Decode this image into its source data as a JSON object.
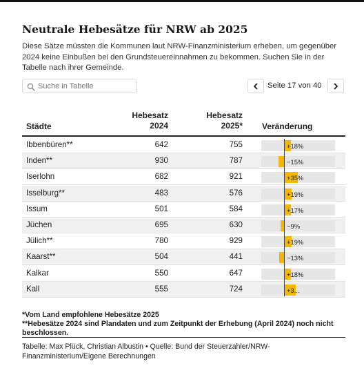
{
  "title": "Neutrale Hebesätze für NRW ab 2025",
  "description": "Diese Sätze müssten die Kommunen laut NRW-Finanzministerium erheben, um gegenüber 2024 keine Einbußen bei den Grundsteuereinnahmen zu bekommen. Suchen Sie in der Tabelle nach ihrer Gemeinde.",
  "search": {
    "placeholder": "Suche in Tabelle",
    "value": ""
  },
  "pagination": {
    "info": "Seite 17 von 40",
    "current_page": 17,
    "total_pages": 40
  },
  "table": {
    "columns": {
      "city": "Städte",
      "rate2024_line1": "Hebesatz",
      "rate2024_line2": "2024",
      "rate2025_line1": "Hebesatz",
      "rate2025_line2": "2025*",
      "change": "Veränderung"
    },
    "rows": [
      {
        "city": "Ibbenbüren**",
        "rate2024": "642",
        "rate2025": "755",
        "change": "+18%",
        "change_value": 18
      },
      {
        "city": "Inden**",
        "rate2024": "930",
        "rate2025": "787",
        "change": "−15%",
        "change_value": -15
      },
      {
        "city": "Iserlohn",
        "rate2024": "682",
        "rate2025": "921",
        "change": "+35%",
        "change_value": 35
      },
      {
        "city": "Isselburg**",
        "rate2024": "483",
        "rate2025": "576",
        "change": "+19%",
        "change_value": 19
      },
      {
        "city": "Issum",
        "rate2024": "501",
        "rate2025": "584",
        "change": "+17%",
        "change_value": 17
      },
      {
        "city": "Jüchen",
        "rate2024": "695",
        "rate2025": "630",
        "change": "−9%",
        "change_value": -9
      },
      {
        "city": "Jülich**",
        "rate2024": "780",
        "rate2025": "929",
        "change": "+19%",
        "change_value": 19
      },
      {
        "city": "Kaarst**",
        "rate2024": "504",
        "rate2025": "441",
        "change": "−13%",
        "change_value": -13
      },
      {
        "city": "Kalkar",
        "rate2024": "550",
        "rate2025": "647",
        "change": "+18%",
        "change_value": 18
      },
      {
        "city": "Kall",
        "rate2024": "555",
        "rate2025": "724",
        "change": "+3...",
        "change_value": 30
      }
    ]
  },
  "footnotes": {
    "note1": "*Vom Land empfohlene Hebesätze 2025",
    "note2": "**Hebesätze 2024 sind Plandaten und zum Zeitpunkt der Erhebung (April 2024) noch nicht beschlossen."
  },
  "source": "Tabelle: Max Plück, Christian Albustin • Quelle: Bund der Steuerzahler/NRW-Finanzministerium/Eigene Berechnungen",
  "colors": {
    "bar": "#f5b700",
    "track": "#e6e6e6",
    "row_shade": "#f0f0f0"
  },
  "icons": {
    "search": "search-icon",
    "prev": "chevron-left-icon",
    "next": "chevron-right-icon"
  }
}
